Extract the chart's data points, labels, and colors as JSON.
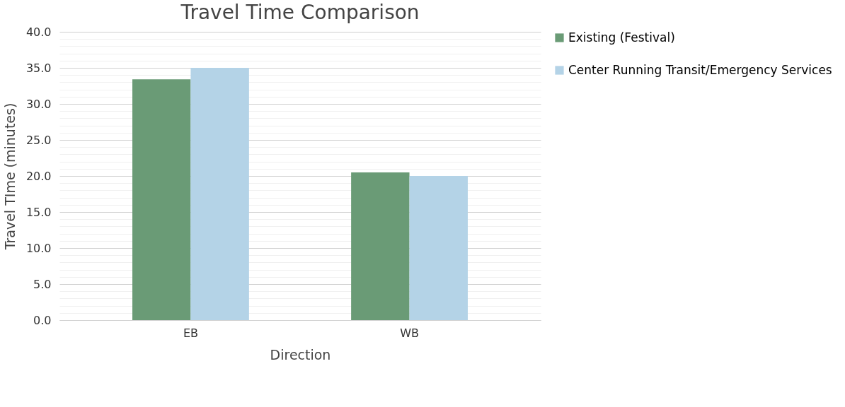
{
  "chart_data": {
    "type": "bar",
    "title": "Travel Time Comparison",
    "xlabel": "Direction",
    "ylabel": "Travel TIme (minutes)",
    "categories": [
      "EB",
      "WB"
    ],
    "series": [
      {
        "name": "Existing (Festival)",
        "color": "#6a9b76",
        "values": [
          33.4,
          20.5
        ]
      },
      {
        "name": "Center Running Transit/Emergency Services",
        "color": "#b4d3e7",
        "values": [
          35.0,
          20.0
        ]
      }
    ],
    "ylim": [
      0,
      40
    ],
    "yticks": [
      {
        "value": 0,
        "label": "0.0"
      },
      {
        "value": 1,
        "label": null
      },
      {
        "value": 2,
        "label": null
      },
      {
        "value": 3,
        "label": null
      },
      {
        "value": 4,
        "label": null
      },
      {
        "value": 5,
        "label": "5.0"
      },
      {
        "value": 6,
        "label": null
      },
      {
        "value": 7,
        "label": null
      },
      {
        "value": 8,
        "label": null
      },
      {
        "value": 9,
        "label": null
      },
      {
        "value": 10,
        "label": "10.0"
      },
      {
        "value": 11,
        "label": null
      },
      {
        "value": 12,
        "label": null
      },
      {
        "value": 13,
        "label": null
      },
      {
        "value": 14,
        "label": null
      },
      {
        "value": 15,
        "label": "15.0"
      },
      {
        "value": 16,
        "label": null
      },
      {
        "value": 17,
        "label": null
      },
      {
        "value": 18,
        "label": null
      },
      {
        "value": 19,
        "label": null
      },
      {
        "value": 20,
        "label": "20.0"
      },
      {
        "value": 21,
        "label": null
      },
      {
        "value": 22,
        "label": null
      },
      {
        "value": 23,
        "label": null
      },
      {
        "value": 24,
        "label": null
      },
      {
        "value": 25,
        "label": "25.0"
      },
      {
        "value": 26,
        "label": null
      },
      {
        "value": 27,
        "label": null
      },
      {
        "value": 28,
        "label": null
      },
      {
        "value": 29,
        "label": null
      },
      {
        "value": 30,
        "label": "30.0"
      },
      {
        "value": 31,
        "label": null
      },
      {
        "value": 32,
        "label": null
      },
      {
        "value": 33,
        "label": null
      },
      {
        "value": 34,
        "label": null
      },
      {
        "value": 35,
        "label": "35.0"
      },
      {
        "value": 36,
        "label": null
      },
      {
        "value": 37,
        "label": null
      },
      {
        "value": 38,
        "label": null
      },
      {
        "value": 39,
        "label": null
      },
      {
        "value": 40,
        "label": "40.0"
      }
    ],
    "grid": true,
    "legend": "right"
  }
}
